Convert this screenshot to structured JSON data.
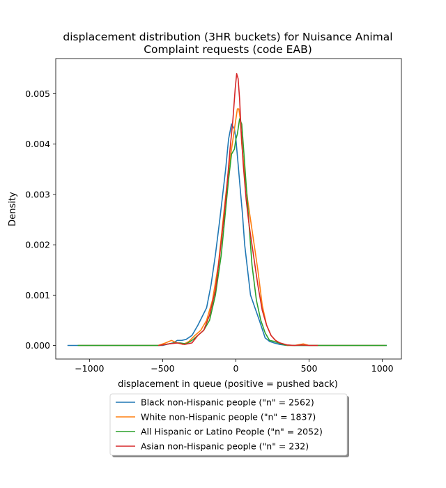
{
  "chart_data": {
    "type": "line",
    "title_line1": "displacement distribution (3HR buckets) for Nuisance Animal",
    "title_line2": "Complaint requests (code EAB)",
    "xlabel": "displacement in queue (positive = pushed back)",
    "ylabel": "Density",
    "xlim": [
      -1230,
      1130
    ],
    "ylim": [
      -0.00027,
      0.0057
    ],
    "x_ticks": [
      -1000,
      -500,
      0,
      500,
      1000
    ],
    "x_tick_labels": [
      "−1000",
      "−500",
      "0",
      "500",
      "1000"
    ],
    "y_ticks": [
      0.0,
      0.001,
      0.002,
      0.003,
      0.004,
      0.005
    ],
    "y_tick_labels": [
      "0.000",
      "0.001",
      "0.002",
      "0.003",
      "0.004",
      "0.005"
    ],
    "grid": false,
    "legend_position": "below plot, centered",
    "series": [
      {
        "name": "Black non-Hispanic people (\"n\" = 2562)",
        "color": "#1f77b4",
        "x": [
          -1150,
          -900,
          -700,
          -600,
          -500,
          -430,
          -400,
          -370,
          -340,
          -300,
          -260,
          -200,
          -170,
          -140,
          -110,
          -90,
          -70,
          -50,
          -30,
          -10,
          0,
          15,
          30,
          45,
          60,
          80,
          100,
          130,
          160,
          200,
          230,
          260,
          300,
          350,
          400,
          500,
          600,
          800,
          1030
        ],
        "y": [
          0.0,
          0.0,
          0.0,
          0.0,
          0.0,
          5e-05,
          0.0001,
          0.0001,
          0.00012,
          0.0002,
          0.0004,
          0.00075,
          0.0012,
          0.0018,
          0.0025,
          0.003,
          0.0035,
          0.0041,
          0.0044,
          0.0043,
          0.0041,
          0.0036,
          0.0031,
          0.0026,
          0.002,
          0.0015,
          0.001,
          0.00075,
          0.0005,
          0.00015,
          8e-05,
          5e-05,
          2e-05,
          0.0,
          0.0,
          0.0,
          0.0,
          0.0,
          0.0
        ]
      },
      {
        "name": "White non-Hispanic people (\"n\" = 1837)",
        "color": "#ff7f0e",
        "x": [
          -1070,
          -900,
          -700,
          -600,
          -530,
          -480,
          -440,
          -400,
          -360,
          -320,
          -280,
          -240,
          -200,
          -160,
          -120,
          -80,
          -50,
          -25,
          0,
          10,
          20,
          30,
          40,
          60,
          80,
          100,
          120,
          150,
          180,
          210,
          240,
          270,
          300,
          350,
          400,
          460,
          500,
          600,
          800,
          1020
        ],
        "y": [
          0.0,
          0.0,
          0.0,
          0.0,
          0.0,
          5e-05,
          0.0001,
          5e-05,
          2e-05,
          8e-05,
          0.0002,
          0.0003,
          0.0005,
          0.0009,
          0.0016,
          0.0027,
          0.0035,
          0.004,
          0.0045,
          0.0047,
          0.0047,
          0.0045,
          0.004,
          0.0034,
          0.0029,
          0.0025,
          0.0021,
          0.0015,
          0.0008,
          0.0004,
          0.0002,
          0.0001,
          5e-05,
          0.0,
          0.0,
          3e-05,
          0.0,
          0.0,
          0.0,
          0.0
        ]
      },
      {
        "name": "All Hispanic or Latino People (\"n\" = 2052)",
        "color": "#2ca02c",
        "x": [
          -1080,
          -900,
          -700,
          -600,
          -520,
          -460,
          -420,
          -380,
          -340,
          -300,
          -260,
          -220,
          -180,
          -140,
          -100,
          -70,
          -50,
          -30,
          -10,
          0,
          10,
          25,
          40,
          55,
          70,
          90,
          110,
          140,
          170,
          200,
          230,
          260,
          290,
          330,
          400,
          500,
          600,
          800,
          1030
        ],
        "y": [
          0.0,
          0.0,
          0.0,
          0.0,
          0.0,
          3e-05,
          5e-05,
          5e-05,
          3e-05,
          0.0001,
          0.0002,
          0.0003,
          0.0005,
          0.001,
          0.0018,
          0.0027,
          0.0033,
          0.0038,
          0.0039,
          0.0041,
          0.0042,
          0.0045,
          0.0044,
          0.0038,
          0.0032,
          0.0024,
          0.0016,
          0.0009,
          0.0005,
          0.00025,
          0.0001,
          8e-05,
          5e-05,
          1e-05,
          0.0,
          0.0,
          0.0,
          0.0,
          0.0
        ]
      },
      {
        "name": "Asian non-Hispanic people (\"n\" = 232)",
        "color": "#d62728",
        "x": [
          -530,
          -500,
          -460,
          -400,
          -350,
          -300,
          -260,
          -220,
          -180,
          -140,
          -110,
          -80,
          -60,
          -40,
          -20,
          -5,
          5,
          15,
          25,
          35,
          50,
          70,
          90,
          120,
          150,
          180,
          210,
          240,
          270,
          300,
          350,
          400,
          450,
          500,
          560
        ],
        "y": [
          0.0,
          1e-05,
          3e-05,
          5e-05,
          2e-05,
          5e-05,
          0.0002,
          0.0003,
          0.0006,
          0.0011,
          0.0018,
          0.0026,
          0.0032,
          0.0039,
          0.0045,
          0.0051,
          0.0054,
          0.0053,
          0.0049,
          0.0043,
          0.0036,
          0.0029,
          0.0024,
          0.0018,
          0.0012,
          0.0007,
          0.0004,
          0.0002,
          0.0001,
          5e-05,
          1e-05,
          0.0,
          1e-05,
          0.0,
          0.0
        ]
      }
    ]
  }
}
